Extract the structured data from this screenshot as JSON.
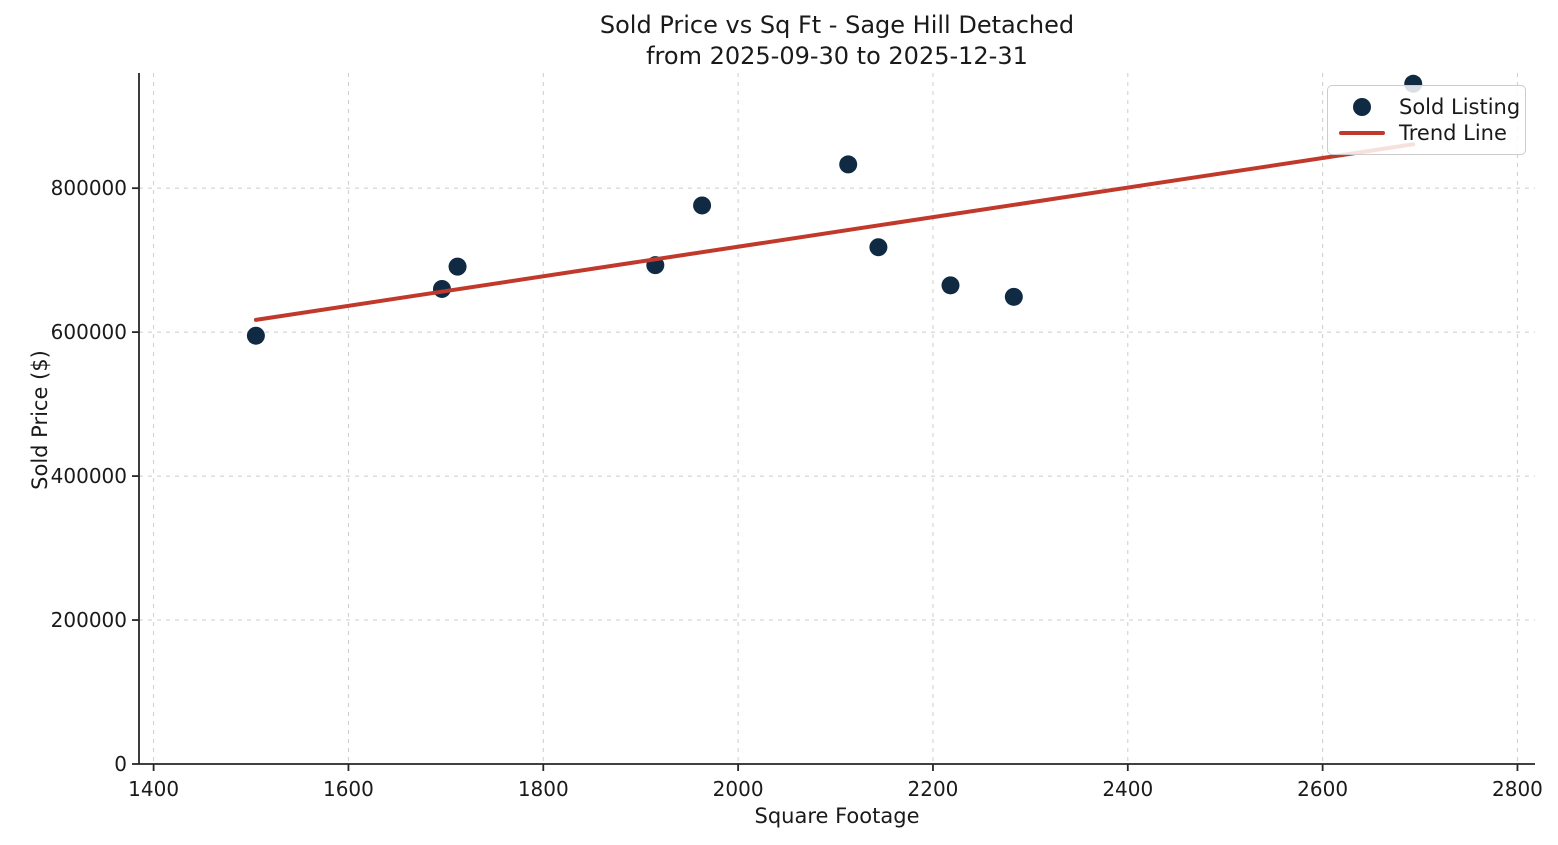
{
  "chart_data": {
    "type": "scatter",
    "title": "Sold Price vs Sq Ft - Sage Hill Detached",
    "subtitle": "from 2025-09-30 to 2025-12-31",
    "xlabel": "Square Footage",
    "ylabel": "Sold Price ($)",
    "xlim": [
      1385,
      2818
    ],
    "ylim": [
      0,
      960000
    ],
    "xticks": [
      1400,
      1600,
      1800,
      2000,
      2200,
      2400,
      2600,
      2800
    ],
    "yticks": [
      0,
      200000,
      400000,
      600000,
      800000
    ],
    "grid": true,
    "grid_style": "dashed",
    "legend_position": "upper right",
    "colors": {
      "point": "#112a43",
      "trend": "#c0392b",
      "grid": "#cccccc",
      "axis": "#262626",
      "text": "#1a1a1a"
    },
    "legend": {
      "entries": [
        {
          "label": "Sold Listing",
          "marker": "dot",
          "color": "#112a43"
        },
        {
          "label": "Trend Line",
          "marker": "line",
          "color": "#c0392b"
        }
      ]
    },
    "series": [
      {
        "name": "Sold Listing",
        "type": "scatter",
        "color": "#112a43",
        "points": [
          {
            "sqft": 1505,
            "price": 595000
          },
          {
            "sqft": 1696,
            "price": 660000
          },
          {
            "sqft": 1712,
            "price": 691000
          },
          {
            "sqft": 1915,
            "price": 693000
          },
          {
            "sqft": 1963,
            "price": 776000
          },
          {
            "sqft": 2113,
            "price": 833000
          },
          {
            "sqft": 2144,
            "price": 718000
          },
          {
            "sqft": 2218,
            "price": 665000
          },
          {
            "sqft": 2283,
            "price": 649000
          },
          {
            "sqft": 2693,
            "price": 945000
          }
        ]
      },
      {
        "name": "Trend Line",
        "type": "line",
        "color": "#c0392b",
        "points": [
          {
            "sqft": 1505,
            "price": 617000
          },
          {
            "sqft": 2693,
            "price": 861000
          }
        ]
      }
    ]
  }
}
